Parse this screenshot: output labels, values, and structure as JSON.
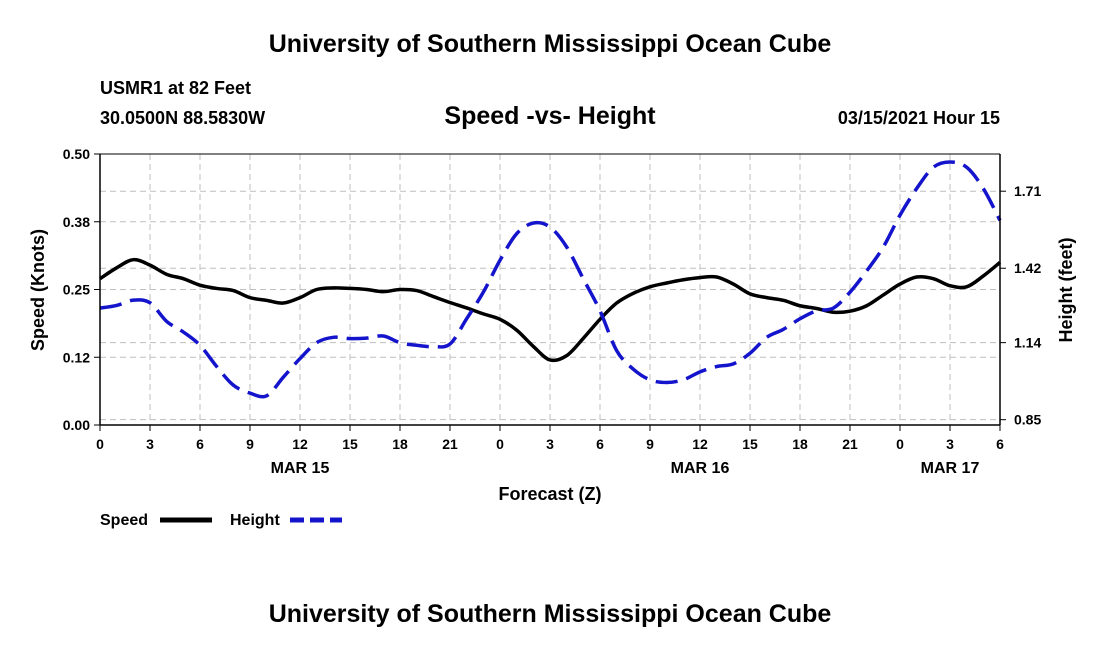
{
  "header": {
    "title": "University of Southern Mississippi Ocean Cube",
    "station": "USMR1 at 82 Feet",
    "coords": "30.0500N 88.5830W",
    "chart_title": "Speed -vs- Height",
    "date": "03/15/2021 Hour 15"
  },
  "footer": {
    "title": "University of Southern Mississippi Ocean Cube"
  },
  "colors": {
    "speed": "#000000",
    "height": "#1414cc",
    "grid": "#bfbfbf"
  },
  "chart_data": {
    "type": "line",
    "title": "Speed -vs- Height",
    "xlabel": "Forecast (Z)",
    "ylabel": "Speed (Knots)",
    "y2label": "Height (feet)",
    "xlim": [
      0,
      54
    ],
    "ylim": [
      0,
      0.5
    ],
    "y2lim": [
      0.83,
      1.85
    ],
    "x_ticks": [
      {
        "x": 0,
        "label": "0"
      },
      {
        "x": 3,
        "label": "3"
      },
      {
        "x": 6,
        "label": "6"
      },
      {
        "x": 9,
        "label": "9"
      },
      {
        "x": 12,
        "label": "12"
      },
      {
        "x": 15,
        "label": "15"
      },
      {
        "x": 18,
        "label": "18"
      },
      {
        "x": 21,
        "label": "21"
      },
      {
        "x": 24,
        "label": "0"
      },
      {
        "x": 27,
        "label": "3"
      },
      {
        "x": 30,
        "label": "6"
      },
      {
        "x": 33,
        "label": "9"
      },
      {
        "x": 36,
        "label": "12"
      },
      {
        "x": 39,
        "label": "15"
      },
      {
        "x": 42,
        "label": "18"
      },
      {
        "x": 45,
        "label": "21"
      },
      {
        "x": 48,
        "label": "0"
      },
      {
        "x": 51,
        "label": "3"
      },
      {
        "x": 54,
        "label": "6"
      }
    ],
    "date_labels": [
      {
        "x": 12,
        "label": "MAR 15"
      },
      {
        "x": 36,
        "label": "MAR 16"
      },
      {
        "x": 51,
        "label": "MAR 17"
      }
    ],
    "y_ticks": [
      {
        "v": 0.0,
        "label": "0.00"
      },
      {
        "v": 0.125,
        "label": "0.12"
      },
      {
        "v": 0.25,
        "label": "0.25"
      },
      {
        "v": 0.375,
        "label": "0.38"
      },
      {
        "v": 0.5,
        "label": "0.50"
      }
    ],
    "y2_ticks": [
      {
        "v": 0.85,
        "label": "0.85"
      },
      {
        "v": 1.14,
        "label": "1.14"
      },
      {
        "v": 1.42,
        "label": "1.42"
      },
      {
        "v": 1.71,
        "label": "1.71"
      }
    ],
    "legend_position": "bottom-left",
    "series": [
      {
        "name": "Speed",
        "axis": "left",
        "style": "solid",
        "x": [
          0,
          1,
          2,
          3,
          4,
          5,
          6,
          7,
          8,
          9,
          10,
          11,
          12,
          13,
          14,
          15,
          16,
          17,
          18,
          19,
          20,
          21,
          22,
          23,
          24,
          25,
          26,
          27,
          28,
          29,
          30,
          31,
          32,
          33,
          34,
          35,
          36,
          37,
          38,
          39,
          40,
          41,
          42,
          43,
          44,
          45,
          46,
          47,
          48,
          49,
          50,
          51,
          52,
          53,
          54
        ],
        "values": [
          0.27,
          0.29,
          0.305,
          0.295,
          0.278,
          0.27,
          0.258,
          0.252,
          0.248,
          0.235,
          0.23,
          0.225,
          0.235,
          0.25,
          0.253,
          0.252,
          0.25,
          0.246,
          0.25,
          0.248,
          0.237,
          0.226,
          0.216,
          0.205,
          0.195,
          0.175,
          0.145,
          0.12,
          0.128,
          0.16,
          0.195,
          0.225,
          0.243,
          0.255,
          0.262,
          0.268,
          0.272,
          0.273,
          0.26,
          0.242,
          0.235,
          0.23,
          0.22,
          0.215,
          0.208,
          0.21,
          0.22,
          0.24,
          0.26,
          0.273,
          0.27,
          0.257,
          0.255,
          0.275,
          0.3
        ]
      },
      {
        "name": "Height",
        "axis": "right",
        "style": "dashed",
        "x": [
          0,
          1,
          2,
          3,
          4,
          5,
          6,
          7,
          8,
          9,
          10,
          11,
          12,
          13,
          14,
          15,
          16,
          17,
          18,
          19,
          20,
          21,
          22,
          23,
          24,
          25,
          26,
          27,
          28,
          29,
          30,
          31,
          32,
          33,
          34,
          35,
          36,
          37,
          38,
          39,
          40,
          41,
          42,
          43,
          44,
          45,
          46,
          47,
          48,
          49,
          50,
          51,
          52,
          53,
          54
        ],
        "values": [
          1.27,
          1.28,
          1.3,
          1.29,
          1.22,
          1.18,
          1.13,
          1.05,
          0.98,
          0.95,
          0.94,
          1.01,
          1.08,
          1.14,
          1.16,
          1.155,
          1.157,
          1.165,
          1.14,
          1.13,
          1.125,
          1.135,
          1.23,
          1.33,
          1.45,
          1.55,
          1.59,
          1.575,
          1.5,
          1.38,
          1.26,
          1.11,
          1.04,
          1.0,
          0.99,
          1.0,
          1.03,
          1.05,
          1.06,
          1.1,
          1.16,
          1.19,
          1.23,
          1.26,
          1.27,
          1.33,
          1.41,
          1.5,
          1.62,
          1.72,
          1.8,
          1.82,
          1.8,
          1.72,
          1.6
        ]
      }
    ]
  }
}
